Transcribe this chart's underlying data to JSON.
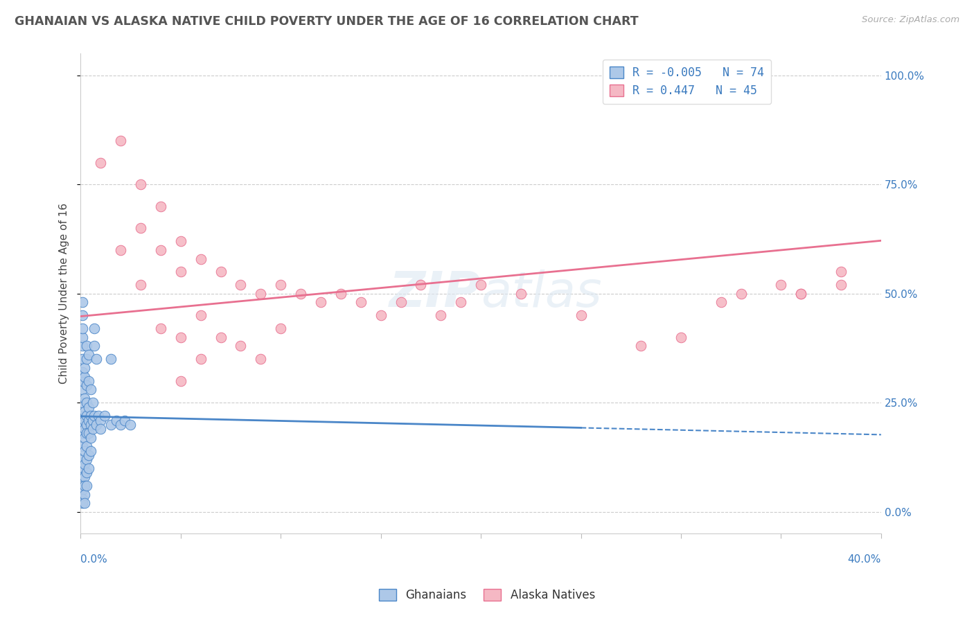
{
  "title": "GHANAIAN VS ALASKA NATIVE CHILD POVERTY UNDER THE AGE OF 16 CORRELATION CHART",
  "source": "Source: ZipAtlas.com",
  "ylabel": "Child Poverty Under the Age of 16",
  "legend_labels": [
    "Ghanaians",
    "Alaska Natives"
  ],
  "legend_r": [
    -0.005,
    0.447
  ],
  "legend_n": [
    74,
    45
  ],
  "blue_color": "#adc8e8",
  "pink_color": "#f5b8c4",
  "blue_line_color": "#4a86c8",
  "pink_line_color": "#e87090",
  "blue_scatter": [
    [
      0.001,
      0.2
    ],
    [
      0.001,
      0.22
    ],
    [
      0.001,
      0.18
    ],
    [
      0.001,
      0.25
    ],
    [
      0.001,
      0.28
    ],
    [
      0.001,
      0.3
    ],
    [
      0.001,
      0.32
    ],
    [
      0.001,
      0.35
    ],
    [
      0.001,
      0.38
    ],
    [
      0.001,
      0.4
    ],
    [
      0.001,
      0.42
    ],
    [
      0.001,
      0.45
    ],
    [
      0.001,
      0.48
    ],
    [
      0.001,
      0.15
    ],
    [
      0.001,
      0.12
    ],
    [
      0.001,
      0.1
    ],
    [
      0.001,
      0.08
    ],
    [
      0.001,
      0.05
    ],
    [
      0.001,
      0.03
    ],
    [
      0.001,
      0.02
    ],
    [
      0.002,
      0.21
    ],
    [
      0.002,
      0.19
    ],
    [
      0.002,
      0.23
    ],
    [
      0.002,
      0.26
    ],
    [
      0.002,
      0.17
    ],
    [
      0.002,
      0.14
    ],
    [
      0.002,
      0.11
    ],
    [
      0.002,
      0.08
    ],
    [
      0.002,
      0.06
    ],
    [
      0.002,
      0.04
    ],
    [
      0.002,
      0.02
    ],
    [
      0.002,
      0.31
    ],
    [
      0.002,
      0.33
    ],
    [
      0.003,
      0.2
    ],
    [
      0.003,
      0.22
    ],
    [
      0.003,
      0.18
    ],
    [
      0.003,
      0.25
    ],
    [
      0.003,
      0.15
    ],
    [
      0.003,
      0.12
    ],
    [
      0.003,
      0.09
    ],
    [
      0.003,
      0.06
    ],
    [
      0.003,
      0.29
    ],
    [
      0.003,
      0.35
    ],
    [
      0.003,
      0.38
    ],
    [
      0.004,
      0.21
    ],
    [
      0.004,
      0.18
    ],
    [
      0.004,
      0.24
    ],
    [
      0.004,
      0.3
    ],
    [
      0.004,
      0.36
    ],
    [
      0.004,
      0.13
    ],
    [
      0.004,
      0.1
    ],
    [
      0.005,
      0.2
    ],
    [
      0.005,
      0.22
    ],
    [
      0.005,
      0.17
    ],
    [
      0.005,
      0.14
    ],
    [
      0.005,
      0.28
    ],
    [
      0.006,
      0.21
    ],
    [
      0.006,
      0.19
    ],
    [
      0.006,
      0.25
    ],
    [
      0.007,
      0.22
    ],
    [
      0.007,
      0.38
    ],
    [
      0.007,
      0.42
    ],
    [
      0.008,
      0.2
    ],
    [
      0.008,
      0.35
    ],
    [
      0.009,
      0.22
    ],
    [
      0.01,
      0.21
    ],
    [
      0.01,
      0.19
    ],
    [
      0.012,
      0.22
    ],
    [
      0.015,
      0.2
    ],
    [
      0.015,
      0.35
    ],
    [
      0.018,
      0.21
    ],
    [
      0.02,
      0.2
    ],
    [
      0.022,
      0.21
    ],
    [
      0.025,
      0.2
    ]
  ],
  "pink_scatter": [
    [
      0.01,
      0.8
    ],
    [
      0.02,
      0.85
    ],
    [
      0.02,
      0.6
    ],
    [
      0.03,
      0.75
    ],
    [
      0.03,
      0.65
    ],
    [
      0.03,
      0.52
    ],
    [
      0.04,
      0.7
    ],
    [
      0.04,
      0.6
    ],
    [
      0.04,
      0.42
    ],
    [
      0.05,
      0.62
    ],
    [
      0.05,
      0.55
    ],
    [
      0.05,
      0.4
    ],
    [
      0.05,
      0.3
    ],
    [
      0.06,
      0.58
    ],
    [
      0.06,
      0.45
    ],
    [
      0.06,
      0.35
    ],
    [
      0.07,
      0.55
    ],
    [
      0.07,
      0.4
    ],
    [
      0.08,
      0.52
    ],
    [
      0.08,
      0.38
    ],
    [
      0.09,
      0.5
    ],
    [
      0.09,
      0.35
    ],
    [
      0.1,
      0.52
    ],
    [
      0.1,
      0.42
    ],
    [
      0.11,
      0.5
    ],
    [
      0.12,
      0.48
    ],
    [
      0.13,
      0.5
    ],
    [
      0.14,
      0.48
    ],
    [
      0.15,
      0.45
    ],
    [
      0.16,
      0.48
    ],
    [
      0.17,
      0.52
    ],
    [
      0.18,
      0.45
    ],
    [
      0.19,
      0.48
    ],
    [
      0.2,
      0.52
    ],
    [
      0.22,
      0.5
    ],
    [
      0.25,
      0.45
    ],
    [
      0.28,
      0.38
    ],
    [
      0.3,
      0.4
    ],
    [
      0.32,
      0.48
    ],
    [
      0.33,
      0.5
    ],
    [
      0.35,
      0.52
    ],
    [
      0.36,
      0.5
    ],
    [
      0.38,
      0.52
    ],
    [
      0.36,
      0.5
    ],
    [
      0.38,
      0.55
    ]
  ],
  "ytick_values": [
    0.0,
    0.25,
    0.5,
    0.75,
    1.0
  ],
  "ylim": [
    -0.05,
    1.05
  ],
  "xlim": [
    0.0,
    0.4
  ],
  "bg_color": "#ffffff",
  "grid_color": "#cccccc"
}
